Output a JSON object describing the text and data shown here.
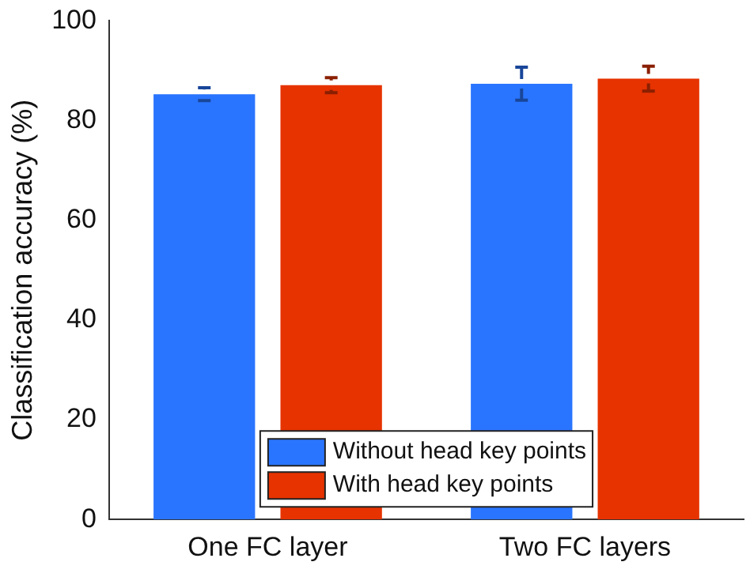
{
  "chart_data": {
    "type": "bar",
    "ylabel": "Classification accuracy (%)",
    "categories": [
      "One FC layer",
      "Two FC layers"
    ],
    "series": [
      {
        "name": "Without head key points",
        "color": "#2a75ff",
        "values": [
          85.3,
          87.4
        ],
        "errors": [
          1.3,
          3.3
        ]
      },
      {
        "name": "With head key points",
        "color": "#e63300",
        "values": [
          87.1,
          88.4
        ],
        "errors": [
          1.5,
          2.5
        ]
      }
    ],
    "ylim": [
      0,
      100
    ],
    "yticks": [
      0,
      20,
      40,
      60,
      80,
      100
    ],
    "grid": false,
    "legend": "bottom"
  }
}
